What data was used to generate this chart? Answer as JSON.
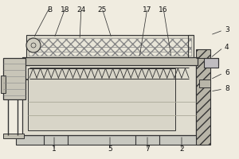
{
  "bg_color": "#f0ece0",
  "lc": "#333333",
  "fs": 6.5,
  "labels_top": [
    "B",
    "18",
    "24",
    "25",
    "17",
    "16"
  ],
  "labels_right": [
    "3",
    "4",
    "6",
    "8"
  ],
  "labels_bottom": [
    "1",
    "5",
    "7",
    "2"
  ]
}
